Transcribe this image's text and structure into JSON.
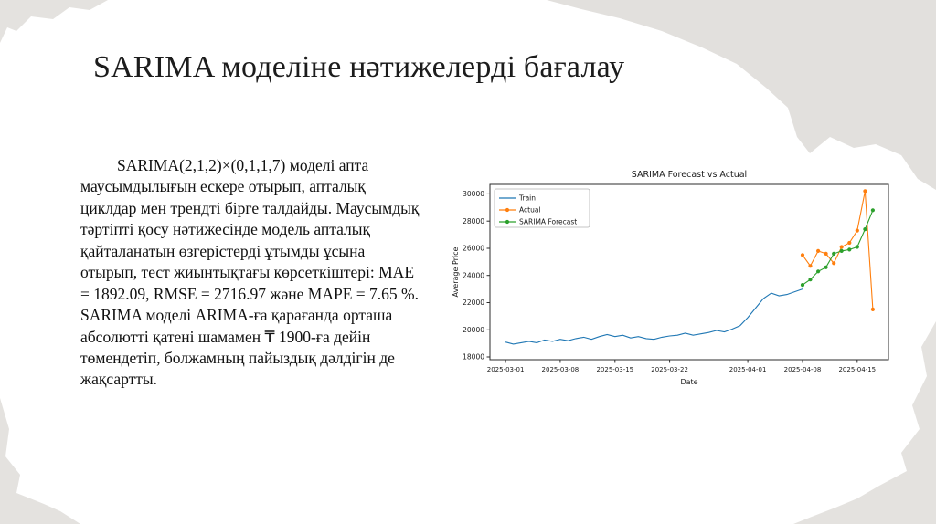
{
  "slide": {
    "title": "SARIMA моделіне нәтижелерді бағалау",
    "body": "SARIMA(2,1,2)×(0,1,1,7) моделі апта маусымдылығын ескере отырып, апталық циклдар мен трендті бірге талдайды. Маусымдық тәртіпті қосу нәтижесінде модель апталық қайталанатын өзгерістерді ұтымды ұсына отырып, тест жиынтықтағы көрсеткіштері: MAE = 1892.09, RMSE = 2716.97 және MAPE = 7.65 %. SARIMA моделі ARIMA-ға қарағанда орташа абсолютті қатені шамамен ₸ 1900-ға дейін төмендетіп, болжамның пайыздық дәлдігін де жақсартты."
  },
  "colors": {
    "torn_paper": "#e4e2df",
    "slide_background": "#ffffff",
    "train_line": "#1f77b4",
    "actual_line": "#ff7f0e",
    "forecast_line": "#2ca02c"
  },
  "chart_data": {
    "type": "line",
    "title": "SARIMA Forecast vs Actual",
    "xlabel": "Date",
    "ylabel": "Average Price",
    "legend_position": "upper left",
    "grid": false,
    "x_range": [
      "2025-02-27",
      "2025-04-19"
    ],
    "y_range": [
      17800,
      30700
    ],
    "y_ticks": [
      18000,
      20000,
      22000,
      24000,
      26000,
      28000,
      30000
    ],
    "x_ticks": [
      "2025-03-01",
      "2025-03-08",
      "2025-03-15",
      "2025-03-22",
      "2025-04-01",
      "2025-04-08",
      "2025-04-15"
    ],
    "series": [
      {
        "name": "Train",
        "color": "#1f77b4",
        "marker": false,
        "dates": [
          "2025-03-01",
          "2025-03-02",
          "2025-03-03",
          "2025-03-04",
          "2025-03-05",
          "2025-03-06",
          "2025-03-07",
          "2025-03-08",
          "2025-03-09",
          "2025-03-10",
          "2025-03-11",
          "2025-03-12",
          "2025-03-13",
          "2025-03-14",
          "2025-03-15",
          "2025-03-16",
          "2025-03-17",
          "2025-03-18",
          "2025-03-19",
          "2025-03-20",
          "2025-03-21",
          "2025-03-22",
          "2025-03-23",
          "2025-03-24",
          "2025-03-25",
          "2025-03-26",
          "2025-03-27",
          "2025-03-28",
          "2025-03-29",
          "2025-03-30",
          "2025-03-31",
          "2025-04-01",
          "2025-04-02",
          "2025-04-03",
          "2025-04-04",
          "2025-04-05",
          "2025-04-06",
          "2025-04-07",
          "2025-04-08"
        ],
        "values": [
          19100,
          18950,
          19050,
          19150,
          19050,
          19250,
          19150,
          19300,
          19200,
          19350,
          19450,
          19300,
          19500,
          19650,
          19500,
          19600,
          19400,
          19500,
          19350,
          19300,
          19450,
          19550,
          19600,
          19750,
          19600,
          19700,
          19800,
          19950,
          19850,
          20050,
          20300,
          20900,
          21600,
          22300,
          22700,
          22500,
          22600,
          22800,
          23000
        ]
      },
      {
        "name": "Actual",
        "color": "#ff7f0e",
        "marker": true,
        "dates": [
          "2025-04-08",
          "2025-04-09",
          "2025-04-10",
          "2025-04-11",
          "2025-04-12",
          "2025-04-13",
          "2025-04-14",
          "2025-04-15",
          "2025-04-16",
          "2025-04-17"
        ],
        "values": [
          25500,
          24700,
          25800,
          25600,
          24900,
          26100,
          26400,
          27300,
          30200,
          21500
        ]
      },
      {
        "name": "SARIMA Forecast",
        "color": "#2ca02c",
        "marker": true,
        "dates": [
          "2025-04-08",
          "2025-04-09",
          "2025-04-10",
          "2025-04-11",
          "2025-04-12",
          "2025-04-13",
          "2025-04-14",
          "2025-04-15",
          "2025-04-16",
          "2025-04-17"
        ],
        "values": [
          23300,
          23700,
          24300,
          24600,
          25600,
          25800,
          25900,
          26100,
          27400,
          28800
        ]
      }
    ]
  }
}
